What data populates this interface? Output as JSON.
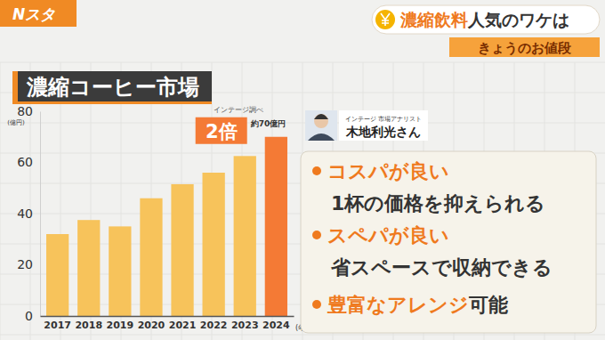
{
  "header": {
    "logo": "Nスタ",
    "headline": [
      "濃縮飲料",
      "人気のワケは"
    ],
    "banner": "きょうのお値段"
  },
  "chart_data": {
    "type": "bar",
    "title": "濃縮コーヒー市場",
    "source": "インテージ調べ",
    "y_label": "(億円)",
    "x_label": "(年)",
    "categories": [
      "2017",
      "2018",
      "2019",
      "2020",
      "2021",
      "2022",
      "2023",
      "2024"
    ],
    "values": [
      32,
      37.5,
      35,
      46,
      51.5,
      56,
      62.5,
      70
    ],
    "colors": [
      "#f7c35b",
      "#f7c35b",
      "#f7c35b",
      "#f7c35b",
      "#f7c35b",
      "#f7c35b",
      "#f7c35b",
      "#f47a35"
    ],
    "ylim": [
      0,
      80
    ],
    "yticks": [
      0,
      20,
      40,
      60,
      80
    ],
    "grid": false,
    "annotations": [
      "2倍",
      "約70億円"
    ]
  },
  "analyst": {
    "role": "インテージ 市場アナリスト",
    "name": "木地利光さん"
  },
  "points": [
    {
      "title": "コスパが良い",
      "text": "1杯の価格を抑えられる"
    },
    {
      "title": "スペパが良い",
      "text": "省スペースで収納できる"
    },
    {
      "title": "豊富なアレンジ",
      "text": "可能"
    }
  ]
}
